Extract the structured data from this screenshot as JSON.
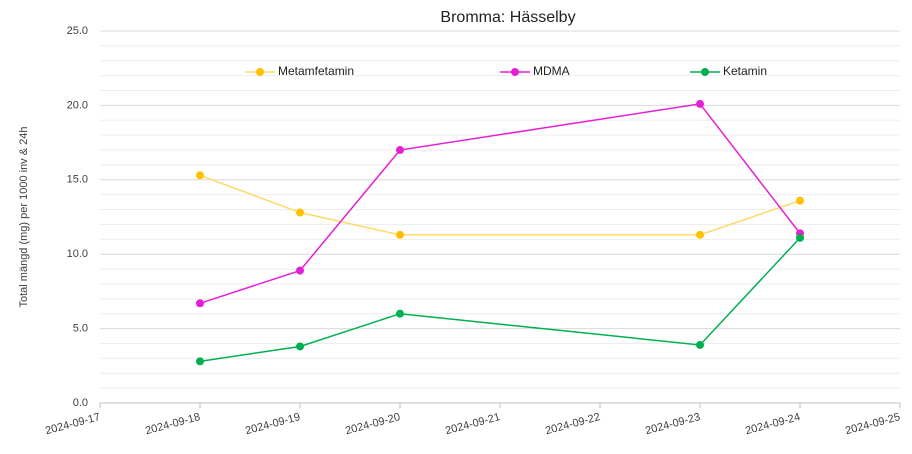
{
  "chart_data": {
    "type": "line",
    "title": "Bromma: Hässelby",
    "y_label": "Total mängd (mg) per 1000 inv & 24h",
    "x": [
      "2024-09-18",
      "2024-09-19",
      "2024-09-20",
      "2024-09-23",
      "2024-09-24"
    ],
    "xlim": [
      "2024-09-17",
      "2024-09-25"
    ],
    "xticks": [
      "2024-09-17",
      "2024-09-18",
      "2024-09-19",
      "2024-09-20",
      "2024-09-21",
      "2024-09-22",
      "2024-09-23",
      "2024-09-24",
      "2024-09-25"
    ],
    "ylim": [
      0,
      25
    ],
    "yticks": [
      {
        "value": 0,
        "label": "0.0"
      },
      {
        "value": 5,
        "label": "5.0"
      },
      {
        "value": 10,
        "label": "10.0"
      },
      {
        "value": 15,
        "label": "15.0"
      },
      {
        "value": 20,
        "label": "20.0"
      },
      {
        "value": 25,
        "label": "25.0"
      }
    ],
    "grid": true,
    "minor_grid": true,
    "legend": "top",
    "series": [
      {
        "name": "Metamfetamin",
        "color": "#ffc000",
        "line_color": "#ffd966",
        "values": [
          15.3,
          12.8,
          11.3,
          11.3,
          13.6
        ]
      },
      {
        "name": "MDMA",
        "color": "#e61fd6",
        "line_color": "#e61fd6",
        "values": [
          6.7,
          8.9,
          17.0,
          20.1,
          11.4
        ]
      },
      {
        "name": "Ketamin",
        "color": "#00b050",
        "line_color": "#00b050",
        "values": [
          2.8,
          3.8,
          6.0,
          3.9,
          11.1
        ]
      }
    ]
  }
}
